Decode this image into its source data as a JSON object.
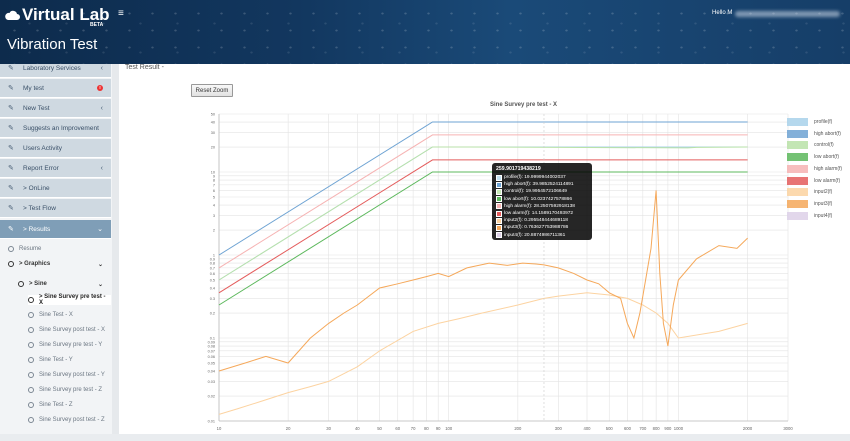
{
  "header": {
    "logo_text": "Virtual Lab",
    "beta": "BETA",
    "menu_icon": "hamburger-icon",
    "user_greeting": "Hello M",
    "page_title": "Vibration Test"
  },
  "sidebar": {
    "items": [
      {
        "label": "Laboratory Services",
        "icon": "wrench-icon",
        "trail": "chevron"
      },
      {
        "label": "My test",
        "icon": "wrench-icon",
        "trail": "alert"
      },
      {
        "label": "New Test",
        "icon": "wrench-icon",
        "trail": "chevron"
      },
      {
        "label": "Suggests an Improvement",
        "icon": "wrench-icon",
        "trail": ""
      },
      {
        "label": "Users Activity",
        "icon": "wrench-icon",
        "trail": ""
      },
      {
        "label": "Report Error",
        "icon": "wrench-icon",
        "trail": "chevron"
      },
      {
        "label": "> OnLine",
        "icon": "wrench-icon",
        "trail": ""
      },
      {
        "label": "> Test Flow",
        "icon": "wrench-icon",
        "trail": ""
      },
      {
        "label": "> Results",
        "icon": "wrench-icon",
        "trail": "chevron-down"
      }
    ],
    "alert_text": "!",
    "chevron_left": "‹",
    "chevron_down": "⌄",
    "results_sub": {
      "resume": "Resume",
      "graphics": "> Graphics",
      "sine": "> Sine",
      "tests": [
        "> Sine Survey pre test - X",
        "Sine Test - X",
        "Sine Survey post test - X",
        "Sine Survey pre test - Y",
        "Sine Test - Y",
        "Sine Survey post test - Y",
        "Sine Survey pre test - Z",
        "Sine Test - Z",
        "Sine Survey post test - Z"
      ]
    }
  },
  "main": {
    "section_label": "Test Result -",
    "reset_zoom": "Reset Zoom"
  },
  "tooltip": {
    "title": "259.901719438219",
    "rows": [
      {
        "text": "profile(f): 19.9999944002037",
        "color": "#c5e3f2"
      },
      {
        "text": "high abort(f): 39.9852524114891",
        "color": "#6ea3d3"
      },
      {
        "text": "control(f): 19.9954572106649",
        "color": "#c8eab8"
      },
      {
        "text": "low abort(f): 10.0237427578866",
        "color": "#5cb85c"
      },
      {
        "text": "high alarm(f): 28.2507592918138",
        "color": "#f6b3b3"
      },
      {
        "text": "low alarm(f): 14.1589170493972",
        "color": "#e45c5c"
      },
      {
        "text": "input2(f): 0.295548444689118",
        "color": "#fcd3a1"
      },
      {
        "text": "input3(f): 0.763627753988786",
        "color": "#f5a85a"
      },
      {
        "text": "input4(f): 20.8874986711361",
        "color": "#ddd1e8"
      }
    ]
  },
  "chart_data": {
    "type": "line",
    "title": "Sine Survey pre test - X",
    "x_scale": "log",
    "y_scale": "log",
    "xlim": [
      10,
      3000
    ],
    "ylim": [
      0.01,
      50
    ],
    "x_ticks": [
      "10",
      "20",
      "30",
      "40",
      "50",
      "60",
      "70",
      "80",
      "90",
      "100",
      "200",
      "300",
      "400",
      "500",
      "600",
      "700",
      "800",
      "900",
      "1000",
      "2000",
      "3000"
    ],
    "y_ticks": [
      "50",
      "40",
      "30",
      "20",
      "10",
      "9",
      "8",
      "7",
      "6",
      "5",
      "4",
      "3",
      "2",
      "1",
      "0.9",
      "0.8",
      "0.7",
      "0.6",
      "0.5",
      "0.4",
      "0.3",
      "0.2",
      "0.1",
      "0.09",
      "0.08",
      "0.07",
      "0.06",
      "0.05",
      "0.04",
      "0.03",
      "0.02",
      "0.01"
    ],
    "grid": true,
    "legend_position": "right",
    "series": [
      {
        "name": "profile(f)",
        "color": "#a9d2ea",
        "x": [
          10,
          85,
          2000
        ],
        "y": [
          0.5,
          20,
          20
        ]
      },
      {
        "name": "high abort(f)",
        "color": "#6ea3d3",
        "x": [
          10,
          85,
          2000
        ],
        "y": [
          1.0,
          40,
          40
        ]
      },
      {
        "name": "control(f)",
        "color": "#b9e2a8",
        "x": [
          10,
          85,
          120,
          1100,
          1200,
          2000
        ],
        "y": [
          0.5,
          20,
          20,
          19.5,
          19.8,
          20
        ]
      },
      {
        "name": "low abort(f)",
        "color": "#5cb85c",
        "x": [
          10,
          85,
          2000
        ],
        "y": [
          0.25,
          10,
          10
        ]
      },
      {
        "name": "high alarm(f)",
        "color": "#f6b3b3",
        "x": [
          10,
          85,
          2000
        ],
        "y": [
          0.7,
          28,
          28
        ]
      },
      {
        "name": "low alarm(f)",
        "color": "#e45c5c",
        "x": [
          10,
          85,
          2000
        ],
        "y": [
          0.35,
          14,
          14
        ]
      },
      {
        "name": "input2(f)",
        "color": "#fcd3a1",
        "x": [
          10,
          12,
          15,
          20,
          25,
          30,
          40,
          50,
          70,
          90,
          110,
          140,
          200,
          260,
          300,
          400,
          500,
          600,
          700,
          800,
          900,
          1000,
          1500,
          2000
        ],
        "y": [
          0.012,
          0.014,
          0.017,
          0.022,
          0.026,
          0.03,
          0.045,
          0.07,
          0.12,
          0.15,
          0.17,
          0.2,
          0.25,
          0.3,
          0.32,
          0.35,
          0.33,
          0.3,
          0.25,
          0.2,
          0.15,
          0.1,
          0.12,
          0.15
        ]
      },
      {
        "name": "input3(f)",
        "color": "#f5a85a",
        "x": [
          10,
          13,
          16,
          20,
          25,
          30,
          35,
          40,
          50,
          60,
          70,
          80,
          90,
          100,
          120,
          150,
          180,
          210,
          240,
          260,
          300,
          350,
          400,
          450,
          500,
          560,
          600,
          640,
          680,
          720,
          760,
          800,
          830,
          860,
          900,
          950,
          1000,
          1200,
          1500,
          1800,
          2000
        ],
        "y": [
          0.04,
          0.05,
          0.06,
          0.05,
          0.1,
          0.15,
          0.2,
          0.25,
          0.4,
          0.45,
          0.5,
          0.55,
          0.6,
          0.55,
          0.7,
          0.8,
          0.75,
          0.8,
          0.78,
          0.76,
          0.7,
          0.6,
          0.5,
          0.45,
          0.35,
          0.3,
          0.15,
          0.1,
          0.2,
          0.5,
          1.2,
          6.0,
          0.6,
          0.15,
          0.08,
          0.25,
          0.5,
          0.9,
          1.3,
          1.2,
          1.6
        ]
      },
      {
        "name": "input4(f)",
        "color": "#ddd1e8",
        "x": [],
        "y": []
      }
    ]
  }
}
